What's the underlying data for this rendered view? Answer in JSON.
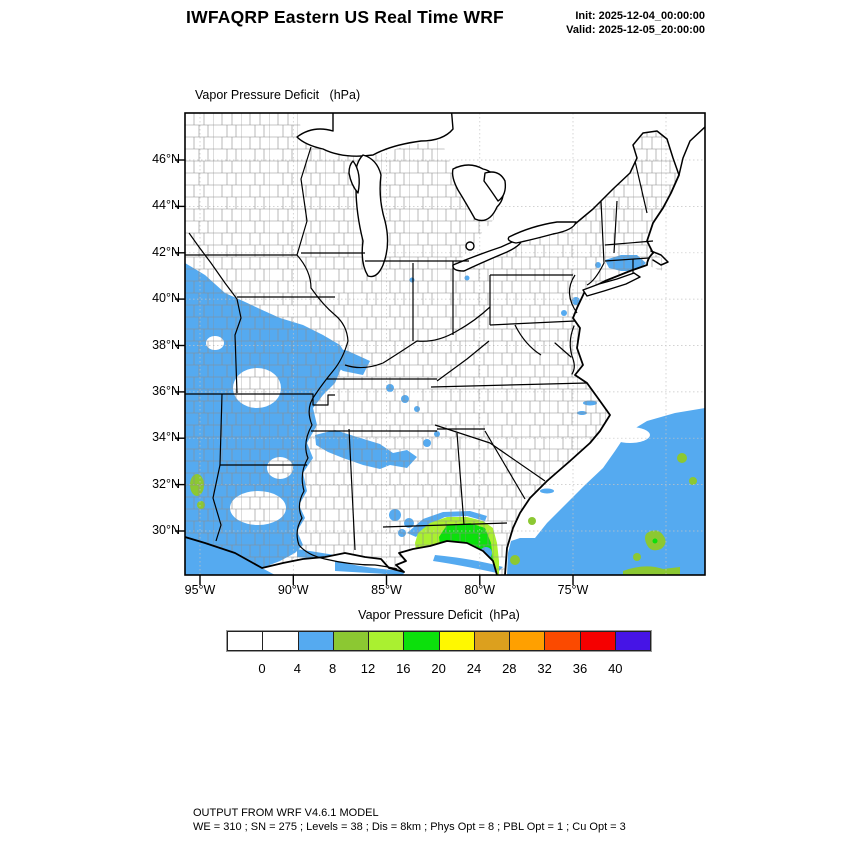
{
  "header": {
    "title": "IWFAQRP Eastern US Real Time WRF",
    "init_label": "Init: 2025-12-04_00:00:00",
    "valid_label": "Valid: 2025-12-05_20:00:00"
  },
  "map": {
    "field_label": "Vapor Pressure Deficit   (hPa)",
    "lat_ticks": [
      "46°N",
      "44°N",
      "42°N",
      "40°N",
      "38°N",
      "36°N",
      "34°N",
      "32°N",
      "30°N"
    ],
    "lon_ticks": [
      "95°W",
      "90°W",
      "85°W",
      "80°W",
      "75°W"
    ]
  },
  "colorbar": {
    "title": "Vapor Pressure Deficit  (hPa)",
    "tick_labels": [
      "0",
      "4",
      "8",
      "12",
      "16",
      "20",
      "24",
      "28",
      "32",
      "36",
      "40"
    ],
    "colors": [
      "#FFFFFF",
      "#FFFFFF",
      "#55AAF0",
      "#8CC832",
      "#AAF030",
      "#0CE00C",
      "#FFF800",
      "#DCA01E",
      "#FFA000",
      "#FB4A00",
      "#F50000",
      "#4614E6"
    ]
  },
  "footer": {
    "line1": "OUTPUT FROM WRF V4.6.1 MODEL",
    "line2": "WE = 310 ; SN = 275 ; Levels = 38 ; Dis = 8km ; Phys Opt = 8 ; PBL Opt = 1 ; Cu Opt = 3"
  }
}
